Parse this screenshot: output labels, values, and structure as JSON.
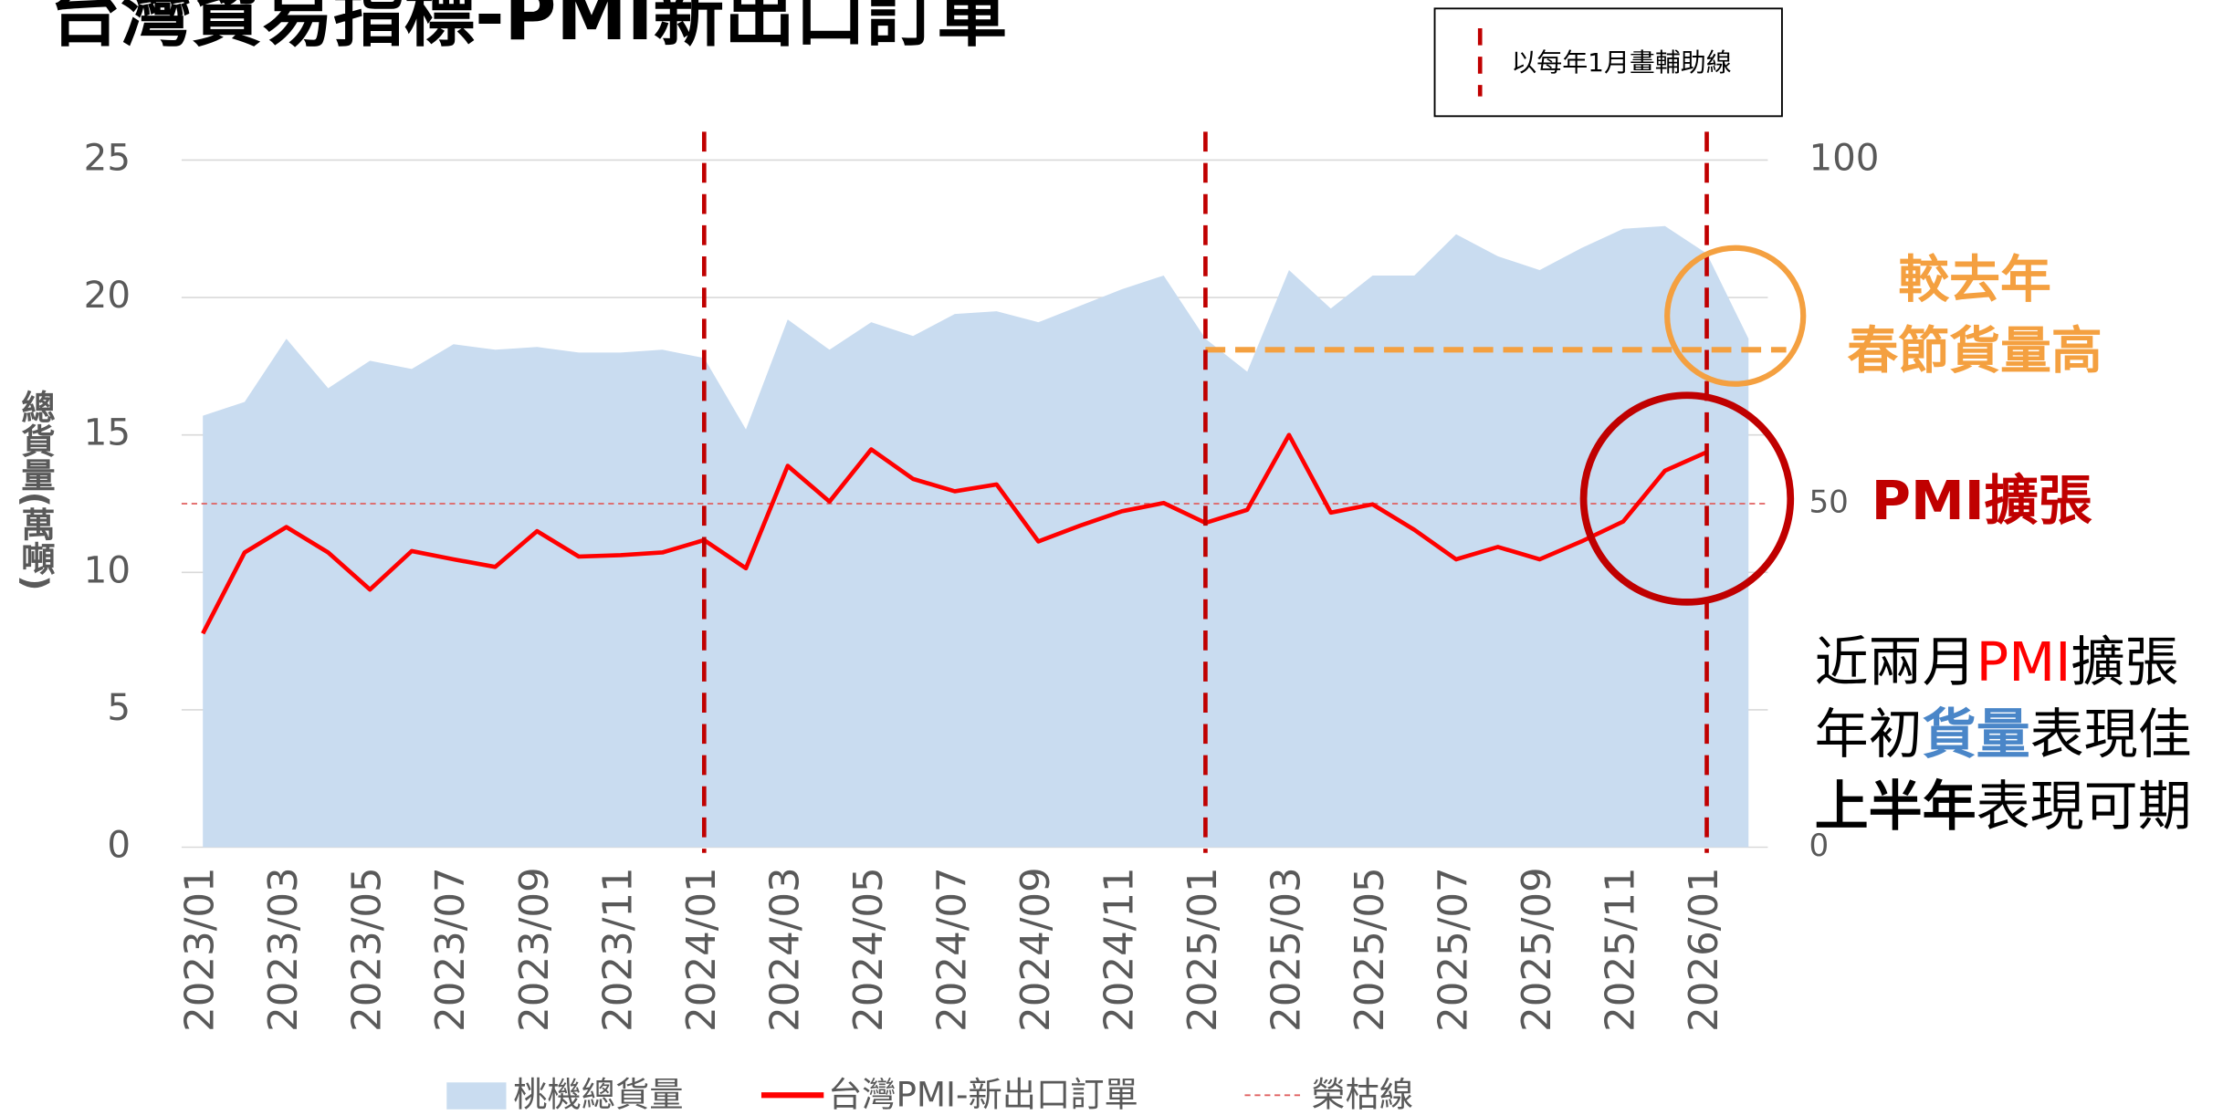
{
  "chart_data": {
    "type": "area-line",
    "title": "台灣貿易指標-PMI新出口訂單",
    "ylabel": "總貨量(萬噸)",
    "categories": [
      "2023/01",
      null,
      "2023/03",
      null,
      "2023/05",
      null,
      "2023/07",
      null,
      "2023/09",
      null,
      "2023/11",
      null,
      "2024/01",
      null,
      "2024/03",
      null,
      "2024/05",
      null,
      "2024/07",
      null,
      "2024/09",
      null,
      "2024/11",
      null,
      "2025/01",
      null,
      "2025/03",
      null,
      "2025/05",
      null,
      "2025/07",
      null,
      "2025/09",
      null,
      "2025/11",
      null,
      "2026/01",
      null
    ],
    "series": [
      {
        "name": "桃機總貨量",
        "kind": "area",
        "axis": "y",
        "color": "#c9dcf0",
        "values": [
          15.7,
          16.2,
          18.5,
          16.7,
          17.7,
          17.4,
          18.3,
          18.1,
          18.2,
          18.0,
          18.0,
          18.1,
          17.8,
          15.2,
          19.2,
          18.1,
          19.1,
          18.6,
          19.4,
          19.5,
          19.1,
          19.7,
          20.3,
          20.8,
          18.5,
          17.3,
          21.0,
          19.6,
          20.8,
          20.8,
          22.3,
          21.5,
          21.0,
          21.8,
          22.5,
          22.6,
          21.6,
          18.5
        ]
      },
      {
        "name": "台灣PMI-新出口訂單",
        "kind": "line",
        "axis": "y2",
        "color": "#ff0000",
        "values": [
          31.1,
          42.9,
          46.6,
          42.9,
          37.5,
          43.1,
          41.9,
          40.8,
          46.0,
          42.3,
          42.5,
          42.9,
          44.7,
          40.6,
          55.5,
          50.3,
          57.9,
          53.6,
          51.8,
          52.8,
          44.5,
          46.8,
          48.9,
          50.1,
          47.2,
          49.1,
          60.0,
          48.7,
          49.9,
          46.2,
          41.9,
          43.7,
          41.9,
          44.5,
          47.4,
          54.8,
          57.5,
          null
        ]
      }
    ],
    "reference_line": {
      "name": "榮枯線",
      "value": 50,
      "axis": "y2",
      "color": "#e06060"
    },
    "guide_lines": {
      "label": "以每年1月畫輔助線",
      "at": [
        "2024/01",
        "2025/01",
        "2026/01"
      ],
      "color": "#c00000"
    },
    "highlight": {
      "text": [
        "較去年",
        "春節貨量高"
      ],
      "value": 18.1,
      "from": "2025/01",
      "color": "#f4a040"
    },
    "pmi_note": {
      "text": "PMI擴張",
      "color": "#c00000"
    },
    "notes": [
      [
        {
          "text": "近兩月"
        },
        {
          "text": "PMI",
          "color": "#ff0000"
        },
        {
          "text": "擴張"
        }
      ],
      [
        {
          "text": "年初"
        },
        {
          "text": "貨量",
          "color": "#4a86c8",
          "bold": true
        },
        {
          "text": "表現佳"
        }
      ],
      [
        {
          "text": "上半年",
          "bold": true,
          "color": "#000000"
        },
        {
          "text": "表現可期"
        }
      ]
    ],
    "ylim": [
      0,
      25
    ],
    "yticks": [
      0,
      5,
      10,
      15,
      20,
      25
    ],
    "y2lim": [
      0,
      100
    ],
    "y2ticks": [
      0,
      50,
      100
    ],
    "grid": true
  }
}
